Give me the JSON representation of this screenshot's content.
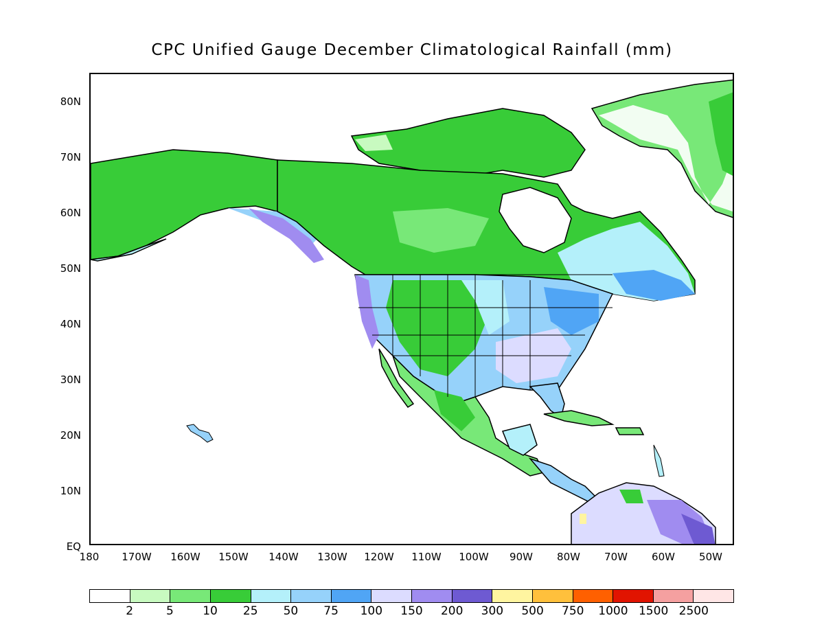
{
  "title": "CPC Unified Gauge December Climatological Rainfall (mm)",
  "lat_labels": [
    "80N",
    "70N",
    "60N",
    "50N",
    "40N",
    "30N",
    "20N",
    "10N",
    "EQ"
  ],
  "lon_labels": [
    "180",
    "170W",
    "160W",
    "150W",
    "140W",
    "130W",
    "120W",
    "110W",
    "100W",
    "90W",
    "80W",
    "70W",
    "60W",
    "50W"
  ],
  "colorbar": {
    "colors": [
      "#ffffff",
      "#c8fac0",
      "#78e878",
      "#38cc38",
      "#b4f0fa",
      "#96d2fa",
      "#50a5f5",
      "#dcdcff",
      "#a08cf0",
      "#6e5ad2",
      "#fff5a0",
      "#ffc03c",
      "#ff6000",
      "#e11400",
      "#f5a0a0",
      "#ffe6e6"
    ],
    "labels": [
      "2",
      "5",
      "10",
      "25",
      "50",
      "75",
      "100",
      "150",
      "200",
      "300",
      "500",
      "750",
      "1000",
      "1500",
      "2500"
    ]
  }
}
